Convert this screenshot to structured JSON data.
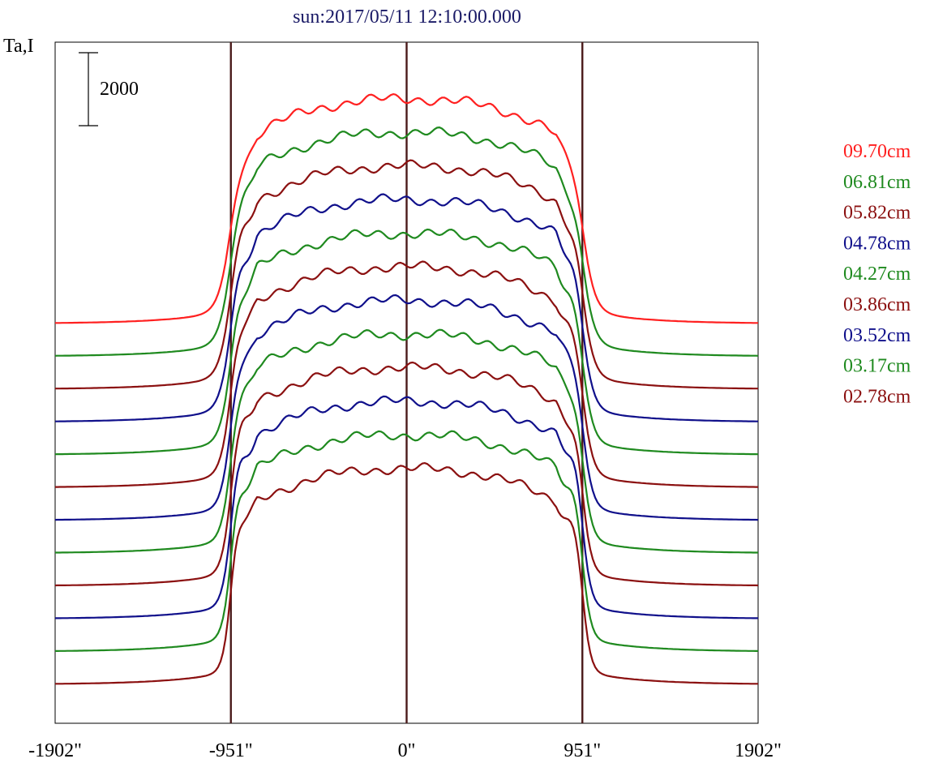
{
  "chart_data": {
    "type": "line",
    "title": "sun:2017/05/11 12:10:00.000",
    "ylabel": "Ta,I",
    "scale_bar_label": "2000",
    "x_ticks": [
      {
        "value": -1902,
        "label": "-1902\""
      },
      {
        "value": -951,
        "label": "-951\""
      },
      {
        "value": 0,
        "label": "0\""
      },
      {
        "value": 951,
        "label": "951\""
      },
      {
        "value": 1902,
        "label": "1902\""
      }
    ],
    "vlines": [
      -951,
      0,
      951
    ],
    "xlim": [
      -1902,
      1902
    ],
    "colors": {
      "title": "#1a1a66",
      "axis": "#000000",
      "vline": "#4a1a1a",
      "red": "#ff2020",
      "green": "#1f8a1f",
      "darkred": "#8b1010",
      "blue": "#10108b"
    },
    "series": [
      {
        "name": "09.70cm",
        "color": "#ff2020"
      },
      {
        "name": "06.81cm",
        "color": "#1f8a1f"
      },
      {
        "name": "05.82cm",
        "color": "#8b1010"
      },
      {
        "name": "04.78cm",
        "color": "#10108b"
      },
      {
        "name": "04.27cm",
        "color": "#1f8a1f"
      },
      {
        "name": "03.86cm",
        "color": "#8b1010"
      },
      {
        "name": "03.52cm",
        "color": "#10108b"
      },
      {
        "name": "03.17cm",
        "color": "#1f8a1f"
      },
      {
        "name": "02.78cm",
        "color": "#8b1010"
      }
    ],
    "extra_curves": [
      {
        "color": "#10108b"
      },
      {
        "color": "#1f8a1f"
      },
      {
        "color": "#8b1010"
      }
    ]
  }
}
